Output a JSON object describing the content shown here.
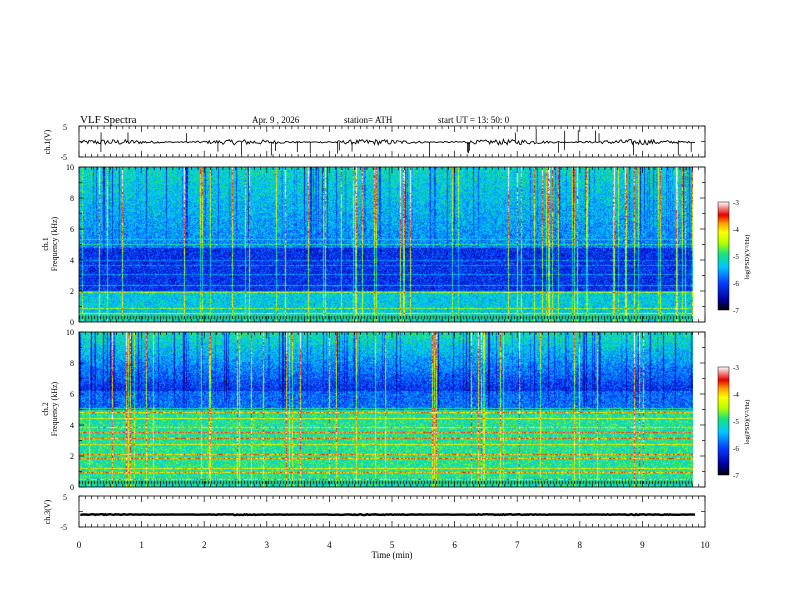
{
  "header": {
    "title": "VLF  Spectra",
    "date": "Apr. 9  , 2026",
    "station": "station= ATH",
    "start": "start  UT  =   13: 50: 0"
  },
  "chart_data": [
    {
      "id": "ch1-waveform",
      "type": "line",
      "ylabel": "ch.1(V)",
      "ylim": [
        -5,
        5
      ],
      "yticks": [
        "5",
        "-5"
      ],
      "xlim": [
        0,
        10
      ],
      "baseline": -0.2,
      "noise_amplitude": 0.9
    },
    {
      "id": "ch1-spectrogram",
      "type": "heatmap",
      "ylabel_line1": "ch.1",
      "ylabel_line2": "Frequency  (kHz)",
      "ylim": [
        0,
        10
      ],
      "yticks": [
        "0",
        "2",
        "4",
        "6",
        "8",
        "10"
      ],
      "xlim": [
        0,
        9.85
      ],
      "colorbar": {
        "label": "log(PSD)(V²/Hz)",
        "range": [
          -7,
          -3
        ],
        "ticks": [
          "-3",
          "-4",
          "-5",
          "-6",
          "-7"
        ]
      }
    },
    {
      "id": "ch2-spectrogram",
      "type": "heatmap",
      "ylabel_line1": "ch.2",
      "ylabel_line2": "Frequency  (kHz)",
      "ylim": [
        0,
        10
      ],
      "yticks": [
        "0",
        "2",
        "4",
        "6",
        "8",
        "10"
      ],
      "xlim": [
        0,
        9.85
      ],
      "colorbar": {
        "label": "log(PSD)(V²/Hz)",
        "range": [
          -7,
          -3
        ],
        "ticks": [
          "-3",
          "-4",
          "-5",
          "-6",
          "-7"
        ]
      }
    },
    {
      "id": "ch3-waveform",
      "type": "line",
      "ylabel": "ch.3(V)",
      "ylim": [
        -5,
        5
      ],
      "yticks": [
        "5",
        "-5"
      ],
      "xlim": [
        0,
        10
      ],
      "baseline": -1.0,
      "noise_amplitude": 0.15
    }
  ],
  "xaxis": {
    "label": "Time  (min)",
    "ticks": [
      "0",
      "1",
      "2",
      "3",
      "4",
      "5",
      "6",
      "7",
      "8",
      "9",
      "10"
    ],
    "range": [
      0,
      10
    ]
  },
  "colors": {
    "scale": [
      "#000000",
      "#0000a0",
      "#0a3cff",
      "#00c8ff",
      "#19e27a",
      "#b4ff00",
      "#ffff00",
      "#ffa000",
      "#e60000",
      "#ffffff"
    ]
  }
}
